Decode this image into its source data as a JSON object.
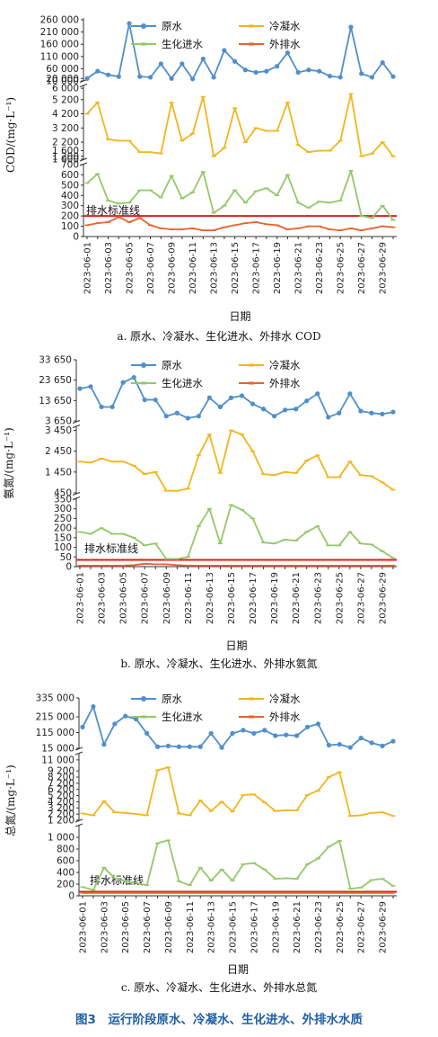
{
  "figure_title": "图3　运行阶段原水、冷凝水、生化进水、外排水水质",
  "colors": {
    "raw": "#4f8fcc",
    "condensate": "#f2b51d",
    "bio": "#93c86a",
    "effluent": "#e8622c",
    "standard": "#e01b1b",
    "title": "#1f5fa8"
  },
  "chart_data": [
    {
      "type": "line",
      "caption": "a. 原水、冷凝水、生化进水、外排水 COD",
      "ylabel": "COD/(mg·L⁻¹)",
      "xlabel": "日期",
      "dates_shown": [
        "2023-06-01",
        "2023-06-03",
        "2023-06-05",
        "2023-06-07",
        "2023-06-09",
        "2023-06-11",
        "2023-06-13",
        "2023-06-15",
        "2023-06-17",
        "2023-06-19",
        "2023-06-21",
        "2023-06-23",
        "2023-06-25",
        "2023-06-27",
        "2023-06-29"
      ],
      "x": [
        "2023-06-01",
        "2023-06-02",
        "2023-06-03",
        "2023-06-04",
        "2023-06-05",
        "2023-06-06",
        "2023-06-07",
        "2023-06-08",
        "2023-06-09",
        "2023-06-10",
        "2023-06-11",
        "2023-06-12",
        "2023-06-13",
        "2023-06-14",
        "2023-06-15",
        "2023-06-16",
        "2023-06-17",
        "2023-06-18",
        "2023-06-19",
        "2023-06-20",
        "2023-06-21",
        "2023-06-22",
        "2023-06-23",
        "2023-06-24",
        "2023-06-25",
        "2023-06-26",
        "2023-06-27",
        "2023-06-28",
        "2023-06-29",
        "2023-06-30"
      ],
      "legend": [
        "原水",
        "冷凝水",
        "生化进水",
        "外排水"
      ],
      "standard_label": "排水标准线",
      "standard_value": 200,
      "segments": [
        {
          "range": [
            0,
            700
          ],
          "ticks": [
            "0",
            "100",
            "200",
            "300",
            "400",
            "500",
            "600",
            "700"
          ],
          "tick_values": [
            0,
            100,
            200,
            300,
            400,
            500,
            600,
            700
          ]
        },
        {
          "range": [
            1000,
            6200
          ],
          "ticks": [
            "1 000",
            "1 200",
            "1 600",
            "2 200",
            "3 200",
            "4 200",
            "5 200",
            "6 000"
          ],
          "tick_values": [
            1000,
            1200,
            1600,
            2200,
            3200,
            4200,
            5200,
            6000
          ]
        },
        {
          "range": [
            10000,
            260000
          ],
          "ticks": [
            "10 000",
            "20 000",
            "60 000",
            "110 000",
            "160 000",
            "210 000",
            "260 000"
          ],
          "tick_values": [
            10000,
            20000,
            60000,
            110000,
            160000,
            210000,
            260000
          ]
        }
      ],
      "series": [
        {
          "name": "原水",
          "segment": 2,
          "values": [
            20000,
            50000,
            35000,
            28000,
            245000,
            28000,
            25000,
            80000,
            20000,
            80000,
            18000,
            100000,
            25000,
            135000,
            90000,
            55000,
            45000,
            50000,
            70000,
            125000,
            45000,
            55000,
            50000,
            30000,
            25000,
            230000,
            40000,
            25000,
            85000,
            28000
          ]
        },
        {
          "name": "冷凝水",
          "segment": 1,
          "values": [
            4200,
            5000,
            2400,
            2300,
            2300,
            1500,
            1500,
            1400,
            5000,
            2300,
            2800,
            5400,
            1200,
            1800,
            4600,
            2200,
            3200,
            3000,
            3000,
            5000,
            2000,
            1500,
            1600,
            1600,
            2300,
            5600,
            1200,
            1400,
            2200,
            1200
          ]
        },
        {
          "name": "生化进水",
          "segment": 0,
          "values": [
            520,
            610,
            350,
            320,
            330,
            450,
            450,
            380,
            590,
            370,
            430,
            630,
            230,
            300,
            450,
            330,
            440,
            470,
            400,
            600,
            330,
            280,
            340,
            330,
            350,
            640,
            200,
            180,
            300,
            160
          ]
        },
        {
          "name": "外排水",
          "segment": 0,
          "values": [
            110,
            130,
            140,
            190,
            140,
            180,
            110,
            80,
            70,
            70,
            80,
            60,
            60,
            90,
            110,
            130,
            140,
            120,
            110,
            70,
            80,
            100,
            100,
            70,
            60,
            80,
            60,
            80,
            100,
            90
          ]
        }
      ]
    },
    {
      "type": "line",
      "caption": "b. 原水、冷凝水、生化进水、外排水氨氮",
      "ylabel": "氨氮/(mg·L⁻¹)",
      "xlabel": "日期",
      "dates_shown": [
        "2023-06-01",
        "2023-06-03",
        "2023-06-05",
        "2023-06-07",
        "2023-06-09",
        "2023-06-11",
        "2023-06-13",
        "2023-06-15",
        "2023-06-17",
        "2023-06-19",
        "2023-06-21",
        "2023-06-23",
        "2023-06-25",
        "2023-06-27",
        "2023-06-29"
      ],
      "x": [
        "2023-06-01",
        "2023-06-02",
        "2023-06-03",
        "2023-06-04",
        "2023-06-05",
        "2023-06-06",
        "2023-06-07",
        "2023-06-08",
        "2023-06-09",
        "2023-06-10",
        "2023-06-11",
        "2023-06-12",
        "2023-06-13",
        "2023-06-14",
        "2023-06-15",
        "2023-06-16",
        "2023-06-17",
        "2023-06-18",
        "2023-06-19",
        "2023-06-20",
        "2023-06-21",
        "2023-06-22",
        "2023-06-23",
        "2023-06-24",
        "2023-06-25",
        "2023-06-26",
        "2023-06-27",
        "2023-06-28",
        "2023-06-29",
        "2023-06-30"
      ],
      "legend": [
        "原水",
        "冷凝水",
        "生化进水",
        "外排水"
      ],
      "standard_label": "排水标准线",
      "standard_value": 35,
      "segments": [
        {
          "range": [
            0,
            350
          ],
          "ticks": [
            "0",
            "50",
            "100",
            "150",
            "200",
            "250",
            "300",
            "350"
          ],
          "tick_values": [
            0,
            50,
            100,
            150,
            200,
            250,
            300,
            350
          ]
        },
        {
          "range": [
            450,
            3600
          ],
          "ticks": [
            "450",
            "1 450",
            "2 450",
            "3 450"
          ],
          "tick_values": [
            450,
            1450,
            2450,
            3450
          ]
        },
        {
          "range": [
            3650,
            33650
          ],
          "ticks": [
            "3 650",
            "13 650",
            "23 650",
            "33 650"
          ],
          "tick_values": [
            3650,
            13650,
            23650,
            33650
          ]
        }
      ],
      "series": [
        {
          "name": "原水",
          "segment": 2,
          "values": [
            19500,
            20500,
            10500,
            10500,
            22500,
            25000,
            14000,
            14000,
            6000,
            7500,
            5000,
            6000,
            15000,
            10500,
            15000,
            16000,
            12000,
            9500,
            6000,
            9000,
            9500,
            13500,
            17000,
            5500,
            7500,
            17000,
            8500,
            7500,
            7000,
            8000
          ]
        },
        {
          "name": "冷凝水",
          "segment": 1,
          "values": [
            1950,
            1900,
            2100,
            1950,
            1950,
            1750,
            1350,
            1450,
            550,
            550,
            650,
            2250,
            3250,
            1400,
            3450,
            3250,
            2450,
            1350,
            1300,
            1450,
            1400,
            2000,
            2250,
            1200,
            1200,
            1950,
            1300,
            1250,
            950,
            600
          ]
        },
        {
          "name": "生化进水",
          "segment": 0,
          "values": [
            180,
            170,
            200,
            170,
            170,
            150,
            110,
            120,
            40,
            40,
            50,
            210,
            300,
            120,
            320,
            295,
            250,
            125,
            120,
            140,
            135,
            180,
            210,
            110,
            110,
            180,
            120,
            115,
            80,
            45
          ]
        },
        {
          "name": "外排水",
          "segment": 0,
          "values": [
            5,
            5,
            5,
            5,
            5,
            8,
            15,
            12,
            12,
            8,
            5,
            5,
            5,
            5,
            5,
            5,
            5,
            5,
            5,
            5,
            5,
            5,
            5,
            5,
            5,
            5,
            5,
            5,
            5,
            5
          ]
        }
      ]
    },
    {
      "type": "line",
      "caption": "c. 原水、冷凝水、生化进水、外排水总氮",
      "ylabel": "总氮/(mg·L⁻¹)",
      "xlabel": "日期",
      "dates_shown": [
        "2023-06-01",
        "2023-06-03",
        "2023-06-05",
        "2023-06-07",
        "2023-06-09",
        "2023-06-11",
        "2023-06-13",
        "2023-06-15",
        "2023-06-17",
        "2023-06-19",
        "2023-06-21",
        "2023-06-23",
        "2023-06-25",
        "2023-06-27",
        "2023-06-29"
      ],
      "x": [
        "2023-06-01",
        "2023-06-02",
        "2023-06-03",
        "2023-06-04",
        "2023-06-05",
        "2023-06-06",
        "2023-06-07",
        "2023-06-08",
        "2023-06-09",
        "2023-06-10",
        "2023-06-11",
        "2023-06-12",
        "2023-06-13",
        "2023-06-14",
        "2023-06-15",
        "2023-06-16",
        "2023-06-17",
        "2023-06-18",
        "2023-06-19",
        "2023-06-20",
        "2023-06-21",
        "2023-06-22",
        "2023-06-23",
        "2023-06-24",
        "2023-06-25",
        "2023-06-26",
        "2023-06-27",
        "2023-06-28",
        "2023-06-29",
        "2023-06-30"
      ],
      "legend": [
        "原水",
        "冷凝水",
        "生化进水",
        "外排水"
      ],
      "standard_label": "排水标准线",
      "standard_value": 70,
      "segments": [
        {
          "range": [
            0,
            1200
          ],
          "ticks": [
            "0",
            "200",
            "400",
            "600",
            "800",
            "1 000"
          ],
          "tick_values": [
            0,
            200,
            400,
            600,
            800,
            1000
          ]
        },
        {
          "range": [
            1200,
            12000
          ],
          "ticks": [
            "1 200",
            "2 200",
            "3 200",
            "4 200",
            "5 200",
            "6 200",
            "7 200",
            "8 200",
            "9 200",
            "11 000"
          ],
          "tick_values": [
            1200,
            2200,
            3200,
            4200,
            5200,
            6200,
            7200,
            8200,
            9200,
            11000
          ]
        },
        {
          "range": [
            15000,
            335000
          ],
          "ticks": [
            "15 000",
            "115 000",
            "215 000",
            "335 000"
          ],
          "tick_values": [
            15000,
            115000,
            215000,
            335000
          ]
        }
      ],
      "series": [
        {
          "name": "原水",
          "segment": 2,
          "values": [
            150000,
            280000,
            40000,
            170000,
            220000,
            200000,
            110000,
            25000,
            30000,
            25000,
            25000,
            25000,
            110000,
            20000,
            110000,
            130000,
            110000,
            130000,
            95000,
            100000,
            95000,
            150000,
            170000,
            35000,
            40000,
            20000,
            80000,
            50000,
            30000,
            60000
          ]
        },
        {
          "name": "冷凝水",
          "segment": 1,
          "values": [
            2300,
            2000,
            4300,
            2500,
            2400,
            2200,
            2000,
            9300,
            9800,
            2300,
            2000,
            4400,
            2700,
            4200,
            2600,
            5300,
            5400,
            4100,
            2700,
            2800,
            2800,
            5300,
            6000,
            8200,
            9000,
            1900,
            2000,
            2400,
            2500,
            1900
          ]
        },
        {
          "name": "生化进水",
          "segment": 0,
          "values": [
            150,
            100,
            480,
            300,
            250,
            220,
            180,
            900,
            950,
            250,
            180,
            480,
            260,
            450,
            260,
            540,
            560,
            450,
            290,
            300,
            290,
            540,
            640,
            840,
            940,
            120,
            140,
            270,
            290,
            170
          ]
        },
        {
          "name": "外排水",
          "segment": 0,
          "values": [
            50,
            50,
            50,
            50,
            50,
            50,
            50,
            50,
            50,
            50,
            50,
            50,
            50,
            50,
            50,
            50,
            50,
            50,
            50,
            50,
            50,
            50,
            50,
            50,
            50,
            50,
            50,
            50,
            50,
            50
          ]
        }
      ]
    }
  ]
}
